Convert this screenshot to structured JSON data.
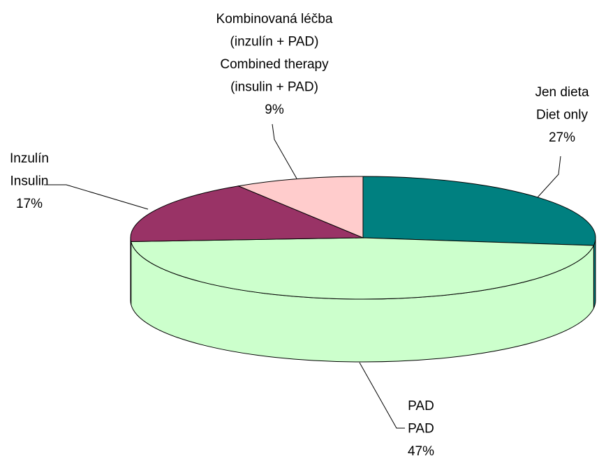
{
  "chart_data": {
    "type": "pie",
    "categories": [
      [
        "Jen dieta",
        "Diet only"
      ],
      [
        "PAD",
        "PAD"
      ],
      [
        "Inzulín",
        "Insulin"
      ],
      [
        "Kombinovaná léčba",
        "(inzulín + PAD)",
        "Combined therapy",
        "(insulin + PAD)"
      ]
    ],
    "values": [
      27,
      47,
      17,
      9
    ],
    "value_labels": [
      "27%",
      "47%",
      "17%",
      "9%"
    ],
    "colors": [
      "#008080",
      "#ccffcc",
      "#993366",
      "#ffcccc"
    ]
  }
}
